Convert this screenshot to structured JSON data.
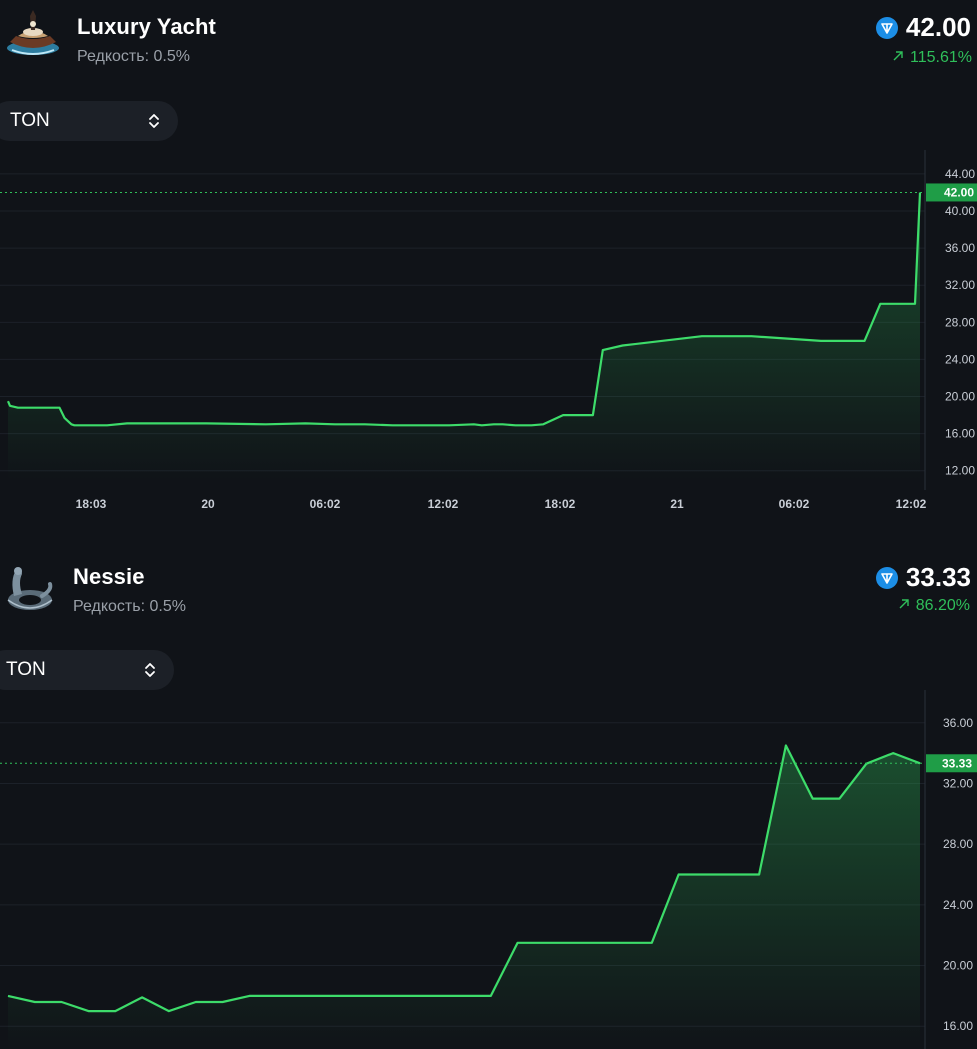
{
  "items": [
    {
      "name": "Luxury Yacht",
      "rarity": "Редкость: 0.5%",
      "price": "42.00",
      "change": "115.61%",
      "currency": "TON",
      "thumb_icon": "yacht-thumbnail",
      "colors": {
        "accent": "#2fbf5a",
        "price_tag": "#1f9d47",
        "ton": "#1c8ee6",
        "bg": "#101318"
      }
    },
    {
      "name": "Nessie",
      "rarity": "Редкость: 0.5%",
      "price": "33.33",
      "change": "86.20%",
      "currency": "TON",
      "thumb_icon": "inflatable-dinosaur-thumbnail",
      "colors": {
        "accent": "#2fbf5a",
        "price_tag": "#1f9d47",
        "ton": "#1c8ee6",
        "bg": "#101318"
      }
    }
  ],
  "chart_data": [
    {
      "type": "area",
      "ylim": [
        11,
        45.5
      ],
      "y_ticks": [
        "44.00",
        "40.00",
        "36.00",
        "32.00",
        "28.00",
        "24.00",
        "20.00",
        "16.00",
        "12.00"
      ],
      "x_ticks": [
        "18:03",
        "20",
        "06:02",
        "12:02",
        "18:02",
        "21",
        "06:02",
        "12:02"
      ],
      "current_price_label": "42.00",
      "current_value": 42.0,
      "series": [
        {
          "x": [
            0,
            2,
            10,
            17,
            22,
            26,
            40,
            52,
            57,
            64,
            67,
            70,
            77,
            80,
            87,
            94,
            100,
            120,
            200,
            260,
            300,
            330,
            360,
            388,
            420,
            445,
            470,
            478,
            490,
            499,
            512,
            528,
            540,
            560,
            572,
            578,
            590,
            600,
            620,
            700,
            750,
            820,
            852,
            858,
            864,
            880,
            910,
            915,
            920
          ],
          "values": [
            19.5,
            19.0,
            18.8,
            18.8,
            18.8,
            18.8,
            18.8,
            18.8,
            17.7,
            17.0,
            16.9,
            16.9,
            16.9,
            16.9,
            16.9,
            16.9,
            16.9,
            17.1,
            17.1,
            17.0,
            17.1,
            17.0,
            17.0,
            16.9,
            16.9,
            16.9,
            17.0,
            16.9,
            17.0,
            17.0,
            16.9,
            16.9,
            17.0,
            18.0,
            18.0,
            18.0,
            18.0,
            25.0,
            25.5,
            26.5,
            26.5,
            26.0,
            26.0,
            26.0,
            26.0,
            30.0,
            30.0,
            30.0,
            42.0
          ]
        }
      ]
    },
    {
      "type": "area",
      "ylim": [
        14.5,
        37.5
      ],
      "y_ticks": [
        "36.00",
        "32.00",
        "28.00",
        "24.00",
        "20.00",
        "16.00"
      ],
      "x_ticks": [],
      "current_price_label": "33.33",
      "current_value": 33.33,
      "series": [
        {
          "values": [
            18.0,
            17.6,
            17.6,
            17.0,
            17.0,
            17.9,
            17.0,
            17.6,
            17.6,
            18.0,
            18.0,
            18.0,
            18.0,
            18.0,
            18.0,
            18.0,
            18.0,
            18.0,
            18.0,
            21.5,
            21.5,
            21.5,
            21.5,
            21.5,
            21.5,
            26.0,
            26.0,
            26.0,
            26.0,
            34.5,
            31.0,
            31.0,
            33.3,
            34.0,
            33.33
          ]
        }
      ]
    }
  ]
}
